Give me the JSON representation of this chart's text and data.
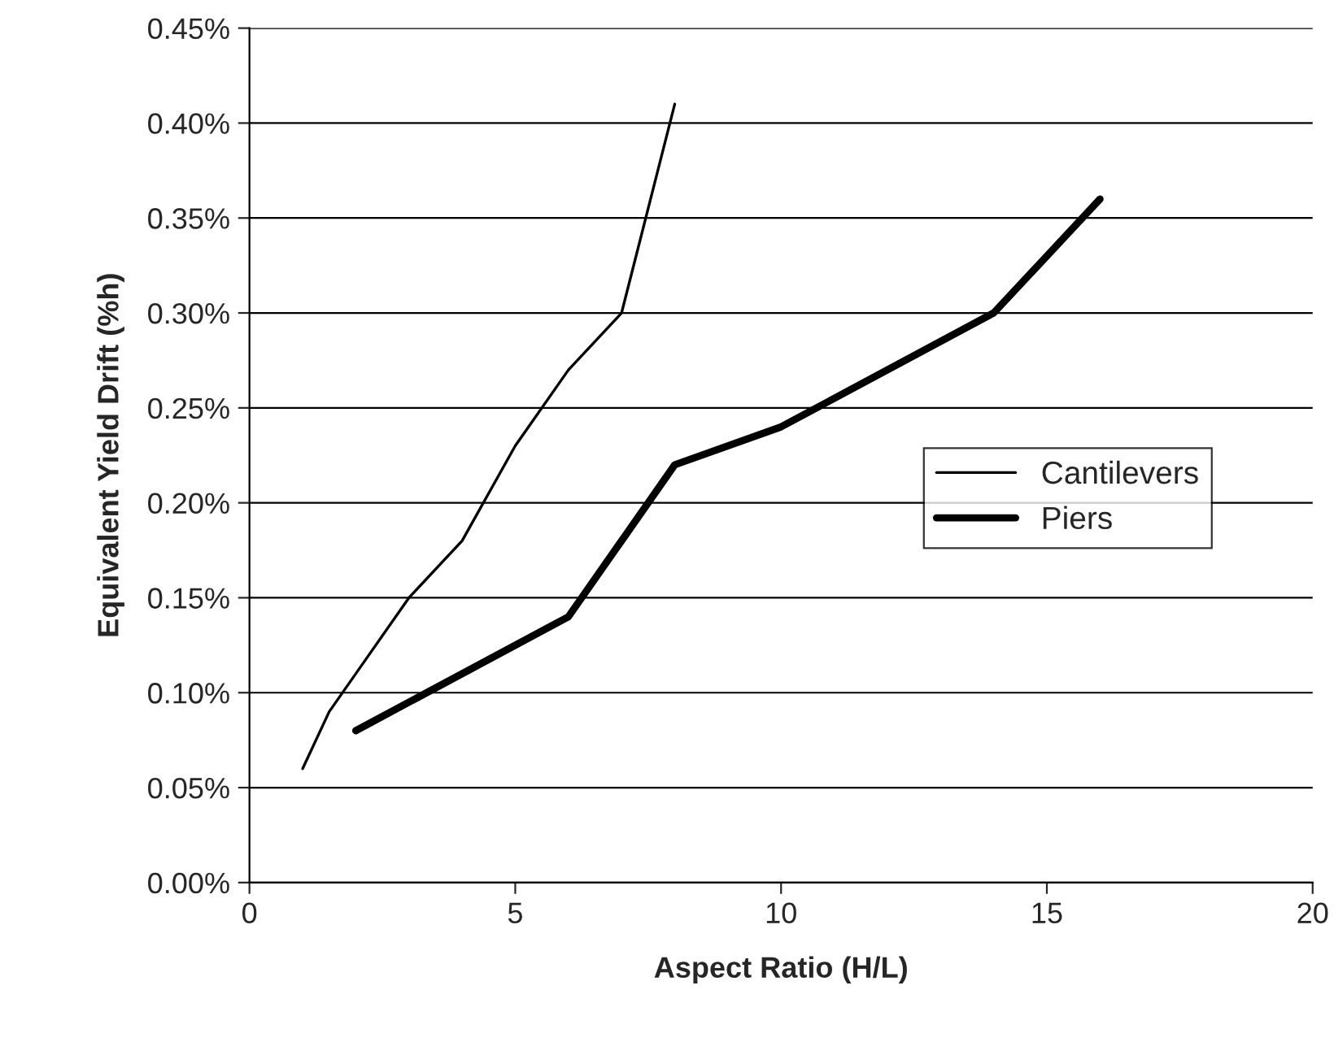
{
  "chart_data": {
    "type": "line",
    "xlabel": "Aspect Ratio (H/L)",
    "ylabel": "Equivalent Yield Drift (%h)",
    "xlim": [
      0,
      20
    ],
    "xticks": [
      0,
      5,
      10,
      15,
      20
    ],
    "ylim": [
      0,
      0.45
    ],
    "yticks": [
      {
        "value": 0,
        "label": "0.00%"
      },
      {
        "value": 0.05,
        "label": "0.05%"
      },
      {
        "value": 0.1,
        "label": "0.10%"
      },
      {
        "value": 0.15,
        "label": "0.15%"
      },
      {
        "value": 0.2,
        "label": "0.20%"
      },
      {
        "value": 0.25,
        "label": "0.25%"
      },
      {
        "value": 0.3,
        "label": "0.30%"
      },
      {
        "value": 0.35,
        "label": "0.35%"
      },
      {
        "value": 0.4,
        "label": "0.40%"
      },
      {
        "value": 0.45,
        "label": "0.45%"
      }
    ],
    "grid": "y",
    "legend": "right",
    "marker": "none",
    "line_style": "solid",
    "series": [
      {
        "name": "Cantilevers",
        "color": "#000000",
        "x": [
          1,
          1.5,
          2,
          3,
          4,
          5,
          6,
          7,
          8
        ],
        "values": [
          0.06,
          0.09,
          0.11,
          0.15,
          0.18,
          0.23,
          0.27,
          0.3,
          0.41
        ]
      },
      {
        "name": "Piers",
        "color": "#000000",
        "x": [
          2,
          6,
          8,
          10,
          14,
          16
        ],
        "values": [
          0.08,
          0.14,
          0.22,
          0.24,
          0.3,
          0.36
        ]
      }
    ]
  }
}
